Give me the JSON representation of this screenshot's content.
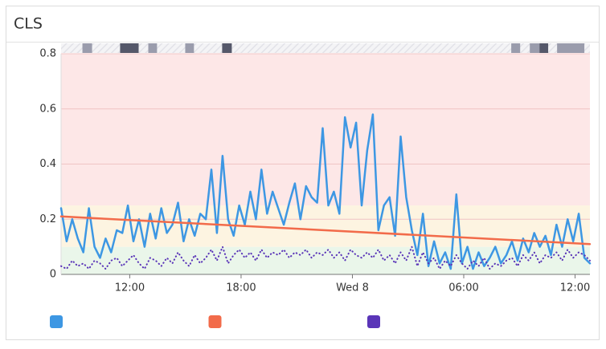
{
  "chart_data": {
    "type": "line",
    "title": "CLS",
    "xlim": [
      8.3,
      36.8
    ],
    "xticks": [
      {
        "value": 12,
        "label": "12:00"
      },
      {
        "value": 18,
        "label": "18:00"
      },
      {
        "value": 24,
        "label": "Wed 8"
      },
      {
        "value": 30,
        "label": "06:00"
      },
      {
        "value": 36,
        "label": "12:00"
      }
    ],
    "ylim": [
      0,
      0.8
    ],
    "yticks": [
      0,
      0.2,
      0.4,
      0.6,
      0.8
    ],
    "grid": true,
    "bands": [
      {
        "from": 0,
        "to": 0.1,
        "color": "#eaf6ea"
      },
      {
        "from": 0.1,
        "to": 0.25,
        "color": "#fdf4e1"
      },
      {
        "from": 0.25,
        "to": 0.8,
        "color": "#fde7e7"
      }
    ],
    "events": [
      {
        "start": 9.45,
        "end": 9.97,
        "color": "#9a9cac"
      },
      {
        "start": 11.48,
        "end": 12.48,
        "color": "#55586a"
      },
      {
        "start": 13.0,
        "end": 13.47,
        "color": "#9a9cac"
      },
      {
        "start": 14.99,
        "end": 15.46,
        "color": "#9a9cac"
      },
      {
        "start": 16.98,
        "end": 17.5,
        "color": "#55586a"
      },
      {
        "start": 32.56,
        "end": 33.04,
        "color": "#9a9cac"
      },
      {
        "start": 33.56,
        "end": 34.08,
        "color": "#9a9cac"
      },
      {
        "start": 34.08,
        "end": 34.55,
        "color": "#55586a"
      },
      {
        "start": 35.03,
        "end": 36.5,
        "color": "#9a9cac"
      }
    ],
    "x": [
      8.3,
      8.6,
      8.9,
      9.2,
      9.5,
      9.8,
      10.1,
      10.4,
      10.7,
      11.0,
      11.3,
      11.6,
      11.9,
      12.2,
      12.5,
      12.8,
      13.1,
      13.4,
      13.7,
      14.0,
      14.3,
      14.6,
      14.9,
      15.2,
      15.5,
      15.8,
      16.1,
      16.4,
      16.7,
      17.0,
      17.3,
      17.6,
      17.9,
      18.2,
      18.5,
      18.8,
      19.1,
      19.4,
      19.7,
      20.0,
      20.3,
      20.6,
      20.9,
      21.2,
      21.5,
      21.8,
      22.1,
      22.4,
      22.7,
      23.0,
      23.3,
      23.6,
      23.9,
      24.2,
      24.5,
      24.8,
      25.1,
      25.4,
      25.7,
      26.0,
      26.3,
      26.6,
      26.9,
      27.2,
      27.5,
      27.8,
      28.1,
      28.4,
      28.7,
      29.0,
      29.3,
      29.6,
      29.9,
      30.2,
      30.5,
      30.8,
      31.1,
      31.4,
      31.7,
      32.0,
      32.3,
      32.6,
      32.9,
      33.2,
      33.5,
      33.8,
      34.1,
      34.4,
      34.7,
      35.0,
      35.3,
      35.6,
      35.9,
      36.2,
      36.5,
      36.8
    ],
    "series": [
      {
        "color": "#3d97e3",
        "style": "solid",
        "values": [
          0.24,
          0.12,
          0.2,
          0.13,
          0.08,
          0.24,
          0.1,
          0.06,
          0.13,
          0.08,
          0.16,
          0.15,
          0.25,
          0.12,
          0.2,
          0.1,
          0.22,
          0.13,
          0.24,
          0.15,
          0.18,
          0.26,
          0.12,
          0.2,
          0.14,
          0.22,
          0.2,
          0.38,
          0.15,
          0.43,
          0.2,
          0.14,
          0.25,
          0.18,
          0.3,
          0.2,
          0.38,
          0.22,
          0.3,
          0.24,
          0.18,
          0.26,
          0.33,
          0.2,
          0.32,
          0.28,
          0.26,
          0.53,
          0.25,
          0.3,
          0.22,
          0.57,
          0.46,
          0.55,
          0.25,
          0.45,
          0.58,
          0.16,
          0.25,
          0.28,
          0.14,
          0.5,
          0.28,
          0.16,
          0.07,
          0.22,
          0.03,
          0.12,
          0.04,
          0.08,
          0.02,
          0.29,
          0.04,
          0.1,
          0.02,
          0.08,
          0.03,
          0.06,
          0.1,
          0.04,
          0.07,
          0.12,
          0.05,
          0.13,
          0.08,
          0.15,
          0.1,
          0.14,
          0.07,
          0.18,
          0.1,
          0.2,
          0.12,
          0.22,
          0.06,
          0.04
        ]
      },
      {
        "color": "#f26b4a",
        "style": "solid",
        "x": [
          8.3,
          36.8
        ],
        "values": [
          0.21,
          0.11
        ]
      },
      {
        "color": "#5a35b8",
        "style": "dotted",
        "values": [
          0.03,
          0.02,
          0.05,
          0.03,
          0.04,
          0.02,
          0.05,
          0.04,
          0.02,
          0.05,
          0.06,
          0.03,
          0.05,
          0.07,
          0.04,
          0.02,
          0.06,
          0.05,
          0.03,
          0.06,
          0.04,
          0.08,
          0.05,
          0.03,
          0.07,
          0.04,
          0.06,
          0.09,
          0.05,
          0.1,
          0.04,
          0.07,
          0.09,
          0.06,
          0.08,
          0.05,
          0.09,
          0.06,
          0.08,
          0.07,
          0.09,
          0.06,
          0.08,
          0.07,
          0.09,
          0.06,
          0.08,
          0.07,
          0.09,
          0.06,
          0.08,
          0.05,
          0.09,
          0.07,
          0.06,
          0.08,
          0.06,
          0.09,
          0.05,
          0.07,
          0.04,
          0.08,
          0.05,
          0.1,
          0.03,
          0.08,
          0.04,
          0.06,
          0.02,
          0.05,
          0.03,
          0.07,
          0.04,
          0.02,
          0.05,
          0.03,
          0.06,
          0.02,
          0.04,
          0.03,
          0.05,
          0.06,
          0.03,
          0.07,
          0.05,
          0.08,
          0.04,
          0.07,
          0.06,
          0.08,
          0.05,
          0.09,
          0.06,
          0.08,
          0.07,
          0.05
        ]
      }
    ]
  }
}
